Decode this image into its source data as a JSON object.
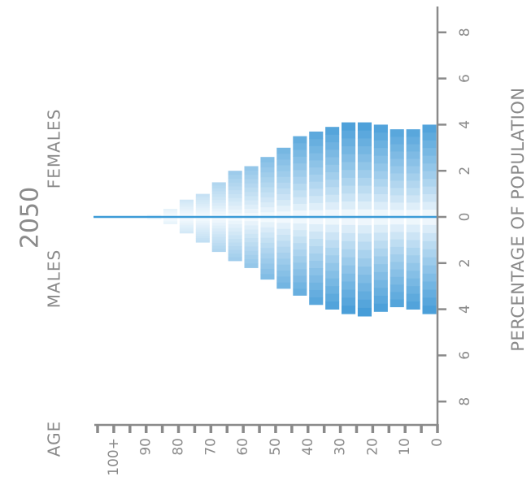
{
  "chart_data": {
    "type": "bar",
    "title": "2050",
    "orientation": "rotated population pyramid",
    "xlabel": "AGE",
    "ylabel": "PERCENTAGE OF POPULATION",
    "female_label": "FEMALES",
    "male_label": "MALES",
    "categories": [
      "0-4",
      "5-9",
      "10-14",
      "15-19",
      "20-24",
      "25-29",
      "30-34",
      "35-39",
      "40-44",
      "45-49",
      "50-54",
      "55-59",
      "60-64",
      "65-69",
      "70-74",
      "75-79",
      "80-84",
      "85-89",
      "90-94",
      "95-99",
      "100+"
    ],
    "age_ticks": [
      "0",
      "10",
      "20",
      "30",
      "40",
      "50",
      "60",
      "70",
      "80",
      "90",
      "100+"
    ],
    "pct_ticks": [
      "8",
      "6",
      "4",
      "2",
      "0",
      "2",
      "4",
      "6",
      "8"
    ],
    "ylim": [
      -9,
      9
    ],
    "series": [
      {
        "name": "FEMALES",
        "values": [
          4.0,
          3.8,
          3.8,
          4.0,
          4.1,
          4.1,
          3.9,
          3.7,
          3.5,
          3.0,
          2.6,
          2.2,
          2.0,
          1.5,
          1.0,
          0.75,
          0.35,
          0.1,
          0.02,
          0.0,
          0.0
        ]
      },
      {
        "name": "MALES",
        "values": [
          4.2,
          4.0,
          3.9,
          4.1,
          4.3,
          4.2,
          4.0,
          3.8,
          3.4,
          3.1,
          2.7,
          2.2,
          1.9,
          1.5,
          1.1,
          0.7,
          0.3,
          0.1,
          0.02,
          0.0,
          0.0
        ]
      }
    ],
    "colors": {
      "axis": "#8a8a8a",
      "text": "#8a8a8a",
      "baseline": "#3c9bd7",
      "bar_dark": "#3d98d6",
      "bar_light": "#e8f4fb",
      "bar_white": "#fafdff"
    }
  }
}
